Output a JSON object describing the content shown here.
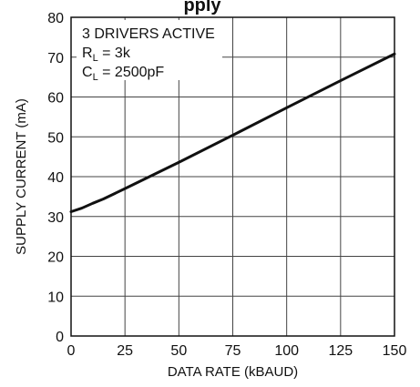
{
  "page": {
    "title_fragment": "pply"
  },
  "chart_data": {
    "type": "line",
    "title": "",
    "xlabel": "DATA RATE (kBAUD)",
    "ylabel": "SUPPLY CURRENT (mA)",
    "xlim": [
      0,
      150
    ],
    "ylim": [
      0,
      80
    ],
    "xticks": [
      0,
      25,
      50,
      75,
      100,
      125,
      150
    ],
    "yticks": [
      0,
      10,
      20,
      30,
      40,
      50,
      60,
      70,
      80
    ],
    "grid": true,
    "legend": "none",
    "line_color": "#111111",
    "series": [
      {
        "x": [
          0,
          5,
          10,
          15,
          25,
          50,
          75,
          100,
          125,
          150
        ],
        "y": [
          31.2,
          32.1,
          33.3,
          34.4,
          37.0,
          43.6,
          50.4,
          57.3,
          64.1,
          70.8
        ]
      }
    ],
    "annotations": [
      {
        "text": "3 DRIVERS ACTIVE"
      },
      {
        "main": "R",
        "sub": "L",
        "rest": " = 3k"
      },
      {
        "main": "C",
        "sub": "L",
        "rest": " = 2500pF"
      }
    ]
  }
}
